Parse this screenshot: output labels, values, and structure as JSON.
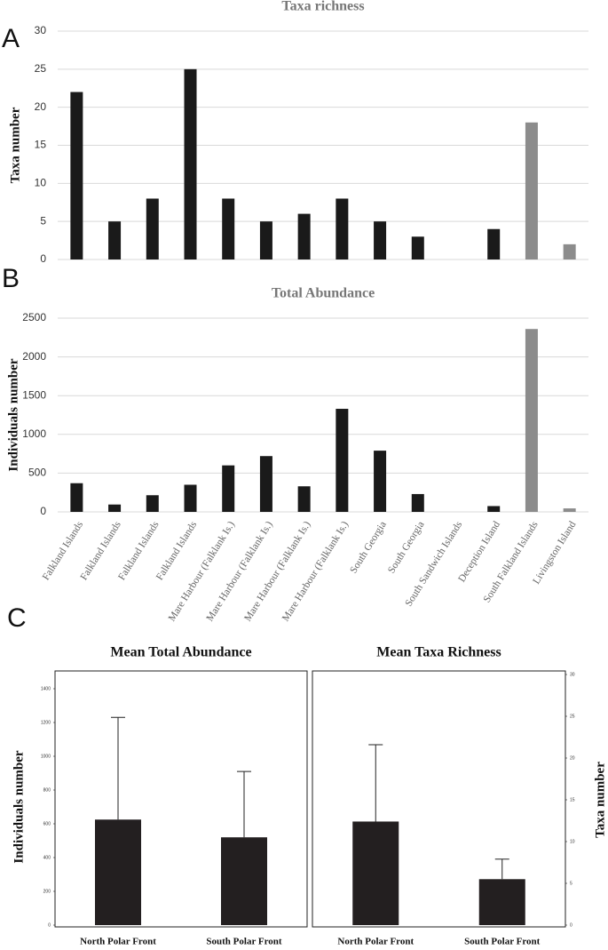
{
  "chart_data": [
    {
      "type": "bar",
      "panel_label": "A",
      "title": "Taxa richness",
      "y_label": "Taxa number",
      "values": [
        22,
        5,
        8,
        25,
        8,
        5,
        6,
        8,
        5,
        3,
        0,
        4,
        18,
        2
      ],
      "colors": [
        "#1a1a1a",
        "#1a1a1a",
        "#1a1a1a",
        "#1a1a1a",
        "#1a1a1a",
        "#1a1a1a",
        "#1a1a1a",
        "#1a1a1a",
        "#1a1a1a",
        "#1a1a1a",
        "#1a1a1a",
        "#1a1a1a",
        "#8c8c8c",
        "#8c8c8c"
      ],
      "ylim": [
        0,
        30
      ],
      "yticks": [
        0,
        5,
        10,
        15,
        20,
        25,
        30
      ],
      "grid": true
    },
    {
      "type": "bar",
      "panel_label": "B",
      "title": "Total Abundance",
      "y_label": "Individuals number",
      "categories": [
        "Falkland Islands",
        "Falkland Islands",
        "Falkland Islands",
        "Falkland Islands",
        "Mare Harbour (Falklank Is.)",
        "Mare Harbour (Falklank Is.)",
        "Mare Harbour (Falklank Is.)",
        "Mare Harbour (Falklank Is.)",
        "South Georgia",
        "South Georgia",
        "South Sandwich Islands",
        "Deception Island",
        "South Falkland Islands",
        "Livingston Island"
      ],
      "values": [
        370,
        95,
        215,
        350,
        600,
        720,
        330,
        1330,
        790,
        230,
        0,
        75,
        2360,
        45
      ],
      "colors": [
        "#1a1a1a",
        "#1a1a1a",
        "#1a1a1a",
        "#1a1a1a",
        "#1a1a1a",
        "#1a1a1a",
        "#1a1a1a",
        "#1a1a1a",
        "#1a1a1a",
        "#1a1a1a",
        "#1a1a1a",
        "#1a1a1a",
        "#8c8c8c",
        "#8c8c8c"
      ],
      "ylim": [
        0,
        2500
      ],
      "yticks": [
        0,
        500,
        1000,
        1500,
        2000,
        2500
      ],
      "grid": true
    },
    {
      "type": "bar",
      "panel_label": "C",
      "title": "Mean Total Abundance",
      "y_label": "Individuals number",
      "categories": [
        "North Polar Front",
        "South Polar Front"
      ],
      "values": [
        625,
        520
      ],
      "errors": [
        605,
        390
      ],
      "color": "#231f20",
      "ylim": [
        0,
        1400
      ],
      "yticks": [
        0,
        200,
        400,
        600,
        800,
        1000,
        1200,
        1400
      ],
      "y_axis_side": "left"
    },
    {
      "type": "bar",
      "title": "Mean Taxa Richness",
      "y_label": "Taxa number",
      "categories": [
        "North Polar Front",
        "South Polar Front"
      ],
      "values": [
        12.4,
        5.5
      ],
      "errors": [
        9.2,
        2.4
      ],
      "color": "#231f20",
      "ylim": [
        0,
        30
      ],
      "yticks": [
        0,
        5,
        10,
        15,
        20,
        25,
        30
      ],
      "y_axis_side": "right"
    }
  ]
}
